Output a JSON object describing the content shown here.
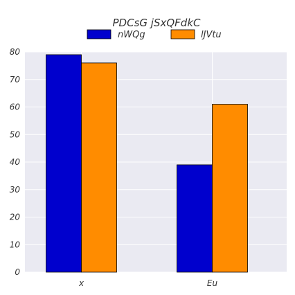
{
  "chart_data": {
    "type": "bar",
    "title": "PDCsG jSxQFdkC",
    "categories": [
      "x",
      "Eu"
    ],
    "series": [
      {
        "name": "nWQg",
        "values": [
          79,
          39
        ],
        "color": "#0000cd"
      },
      {
        "name": "lJVtu",
        "values": [
          76,
          61
        ],
        "color": "#ff8c00"
      }
    ],
    "xlabel": "",
    "ylabel": "",
    "ylim": [
      0,
      80
    ],
    "yticks": [
      0,
      10,
      20,
      30,
      40,
      50,
      60,
      70,
      80
    ],
    "grid": true,
    "legend_position": "top-center",
    "plot_background": "#eaeaf2",
    "grid_color": "#ffffff"
  }
}
